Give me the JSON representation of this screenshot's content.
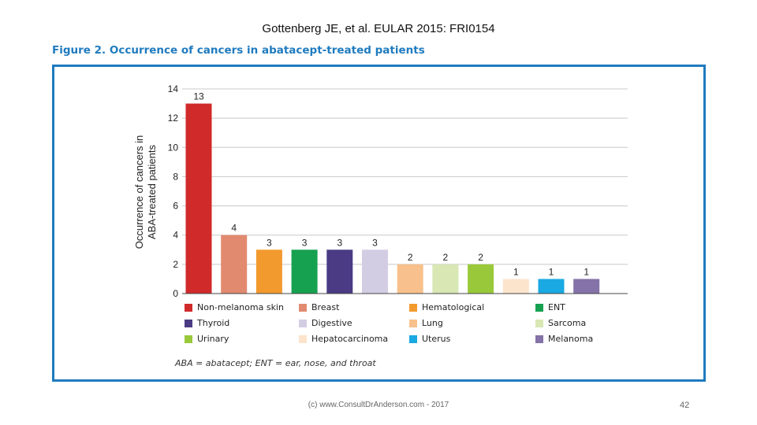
{
  "citation": "Gottenberg JE, et al. EULAR 2015: FRI0154",
  "figure_title": "Figure 2. Occurrence of cancers in abatacept-treated patients",
  "footnote": "ABA = abatacept; ENT = ear, nose, and throat",
  "footer": "(c) www.ConsultDrAnderson.com - 2017",
  "page_number": "42",
  "chart_data": {
    "type": "bar",
    "title": "",
    "ylabel_line1": "Occurrence of cancers in",
    "ylabel_line2": "ABA-treated patients",
    "xlabel": "",
    "ylim": [
      0,
      14
    ],
    "yticks": [
      0,
      2,
      4,
      6,
      8,
      10,
      12,
      14
    ],
    "grid": true,
    "legend_position": "bottom",
    "categories": [
      "Non-melanoma skin",
      "Breast",
      "Hematological",
      "ENT",
      "Thyroid",
      "Digestive",
      "Lung",
      "Sarcoma",
      "Urinary",
      "Hepatocarcinoma",
      "Uterus",
      "Melanoma"
    ],
    "values": [
      13,
      4,
      3,
      3,
      3,
      3,
      2,
      2,
      2,
      1,
      1,
      1
    ],
    "colors": [
      "#d12a2a",
      "#e28a70",
      "#f39a2e",
      "#16a151",
      "#4a3b84",
      "#d3cde4",
      "#f8c08c",
      "#d8e7b4",
      "#99c93b",
      "#fce4cc",
      "#1aa9e2",
      "#8572a8"
    ]
  }
}
